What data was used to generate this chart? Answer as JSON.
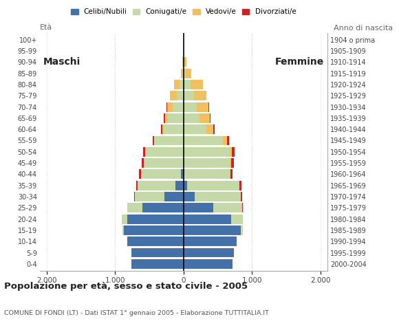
{
  "age_groups": [
    "0-4",
    "5-9",
    "10-14",
    "15-19",
    "20-24",
    "25-29",
    "30-34",
    "35-39",
    "40-44",
    "45-49",
    "50-54",
    "55-59",
    "60-64",
    "65-69",
    "70-74",
    "75-79",
    "80-84",
    "85-89",
    "90-94",
    "95-99",
    "100+"
  ],
  "birth_years": [
    "2000-2004",
    "1995-1999",
    "1990-1994",
    "1985-1989",
    "1980-1984",
    "1975-1979",
    "1970-1974",
    "1965-1969",
    "1960-1964",
    "1955-1959",
    "1950-1954",
    "1945-1949",
    "1940-1944",
    "1935-1939",
    "1930-1934",
    "1925-1929",
    "1920-1924",
    "1915-1919",
    "1910-1914",
    "1905-1909",
    "1904 o prima"
  ],
  "male": {
    "celibe": [
      760,
      760,
      820,
      870,
      820,
      600,
      280,
      120,
      40,
      0,
      0,
      0,
      0,
      0,
      0,
      0,
      0,
      0,
      0,
      0,
      0
    ],
    "coniugato": [
      0,
      0,
      0,
      20,
      80,
      220,
      430,
      550,
      580,
      580,
      560,
      430,
      290,
      230,
      160,
      100,
      60,
      20,
      10,
      0,
      0
    ],
    "vedovo": [
      0,
      0,
      0,
      0,
      0,
      0,
      0,
      0,
      0,
      0,
      0,
      0,
      20,
      40,
      80,
      100,
      80,
      20,
      10,
      0,
      0
    ],
    "divorziato": [
      0,
      0,
      0,
      0,
      0,
      0,
      10,
      20,
      30,
      30,
      30,
      20,
      20,
      20,
      10,
      0,
      0,
      0,
      0,
      0,
      0
    ]
  },
  "female": {
    "nubile": [
      720,
      740,
      780,
      840,
      700,
      430,
      160,
      50,
      10,
      0,
      0,
      0,
      0,
      0,
      0,
      0,
      0,
      0,
      0,
      0,
      0
    ],
    "coniugata": [
      0,
      0,
      0,
      30,
      170,
      430,
      680,
      760,
      670,
      680,
      680,
      580,
      330,
      230,
      190,
      150,
      100,
      30,
      10,
      0,
      0
    ],
    "vedova": [
      0,
      0,
      0,
      0,
      0,
      0,
      0,
      10,
      10,
      20,
      30,
      60,
      100,
      150,
      170,
      180,
      180,
      80,
      30,
      15,
      5
    ],
    "divorziata": [
      0,
      0,
      0,
      0,
      0,
      10,
      20,
      30,
      30,
      40,
      40,
      30,
      20,
      10,
      10,
      0,
      0,
      0,
      0,
      0,
      0
    ]
  },
  "colors": {
    "celibe": "#4472a8",
    "coniugato": "#c5d9a8",
    "vedovo": "#f0c060",
    "divorziato": "#cc2222"
  },
  "xlim": 2100,
  "title": "Popolazione per età, sesso e stato civile - 2005",
  "subtitle": "COMUNE DI FONDI (LT) - Dati ISTAT 1° gennaio 2005 - Elaborazione TUTTITALIA.IT",
  "legend_labels": [
    "Celibi/Nubili",
    "Coniugati/e",
    "Vedovi/e",
    "Divorziati/e"
  ]
}
